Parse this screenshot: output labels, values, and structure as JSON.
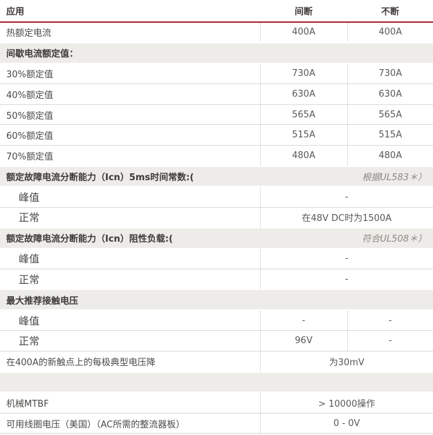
{
  "colors": {
    "accent_red": "#aa1e32",
    "section_background": "#edece8"
  },
  "header": {
    "application": "应用",
    "intermittent": "间断",
    "continuous": "不断"
  },
  "rows": {
    "thermal": {
      "label": "热额定电流",
      "intermittent": "400A",
      "continuous": "400A"
    },
    "intermittent_section": {
      "label": "间歇电流额定值："
    },
    "r30": {
      "label": "30%额定值",
      "intermittent": "730A",
      "continuous": "730A"
    },
    "r40": {
      "label": "40%额定值",
      "intermittent": "630A",
      "continuous": "630A"
    },
    "r50": {
      "label": "50%额定值",
      "intermittent": "565A",
      "continuous": "565A"
    },
    "r60": {
      "label": "60%额定值",
      "intermittent": "515A",
      "continuous": "515A"
    },
    "r70": {
      "label": "70%额定值",
      "intermittent": "480A",
      "continuous": "480A"
    },
    "icn_5ms_section": {
      "label": "额定故障电流分断能力（Icn）5ms时间常数:(",
      "note": "根据UL583＊）"
    },
    "icn_5ms_peak": {
      "label": "峰值",
      "value": "-"
    },
    "icn_5ms_normal": {
      "label": "正常",
      "value": "在48V DC时为1500A"
    },
    "icn_resistive_section": {
      "label": "额定故障电流分断能力（Icn）阻性负载:(",
      "note": "符合UL508＊）"
    },
    "icn_resistive_peak": {
      "label": "峰值",
      "value": "-"
    },
    "icn_resistive_normal": {
      "label": "正常",
      "value": "-"
    },
    "contact_voltage_section": {
      "label": "最大推荐接触电压"
    },
    "contact_voltage_peak": {
      "label": "峰值",
      "intermittent": "-",
      "continuous": "-"
    },
    "contact_voltage_normal": {
      "label": "正常",
      "intermittent": "96V",
      "continuous": "-"
    },
    "voltage_drop": {
      "label": "在400A的新触点上的每极典型电压降",
      "value": "为30mV"
    },
    "mechanical_mtbf": {
      "label": "机械MTBF",
      "value": "> 10000操作"
    },
    "coil_voltage": {
      "label": "可用线圈电压（美国）（AC所需的整流器板）",
      "value": "0 - 0V"
    }
  }
}
